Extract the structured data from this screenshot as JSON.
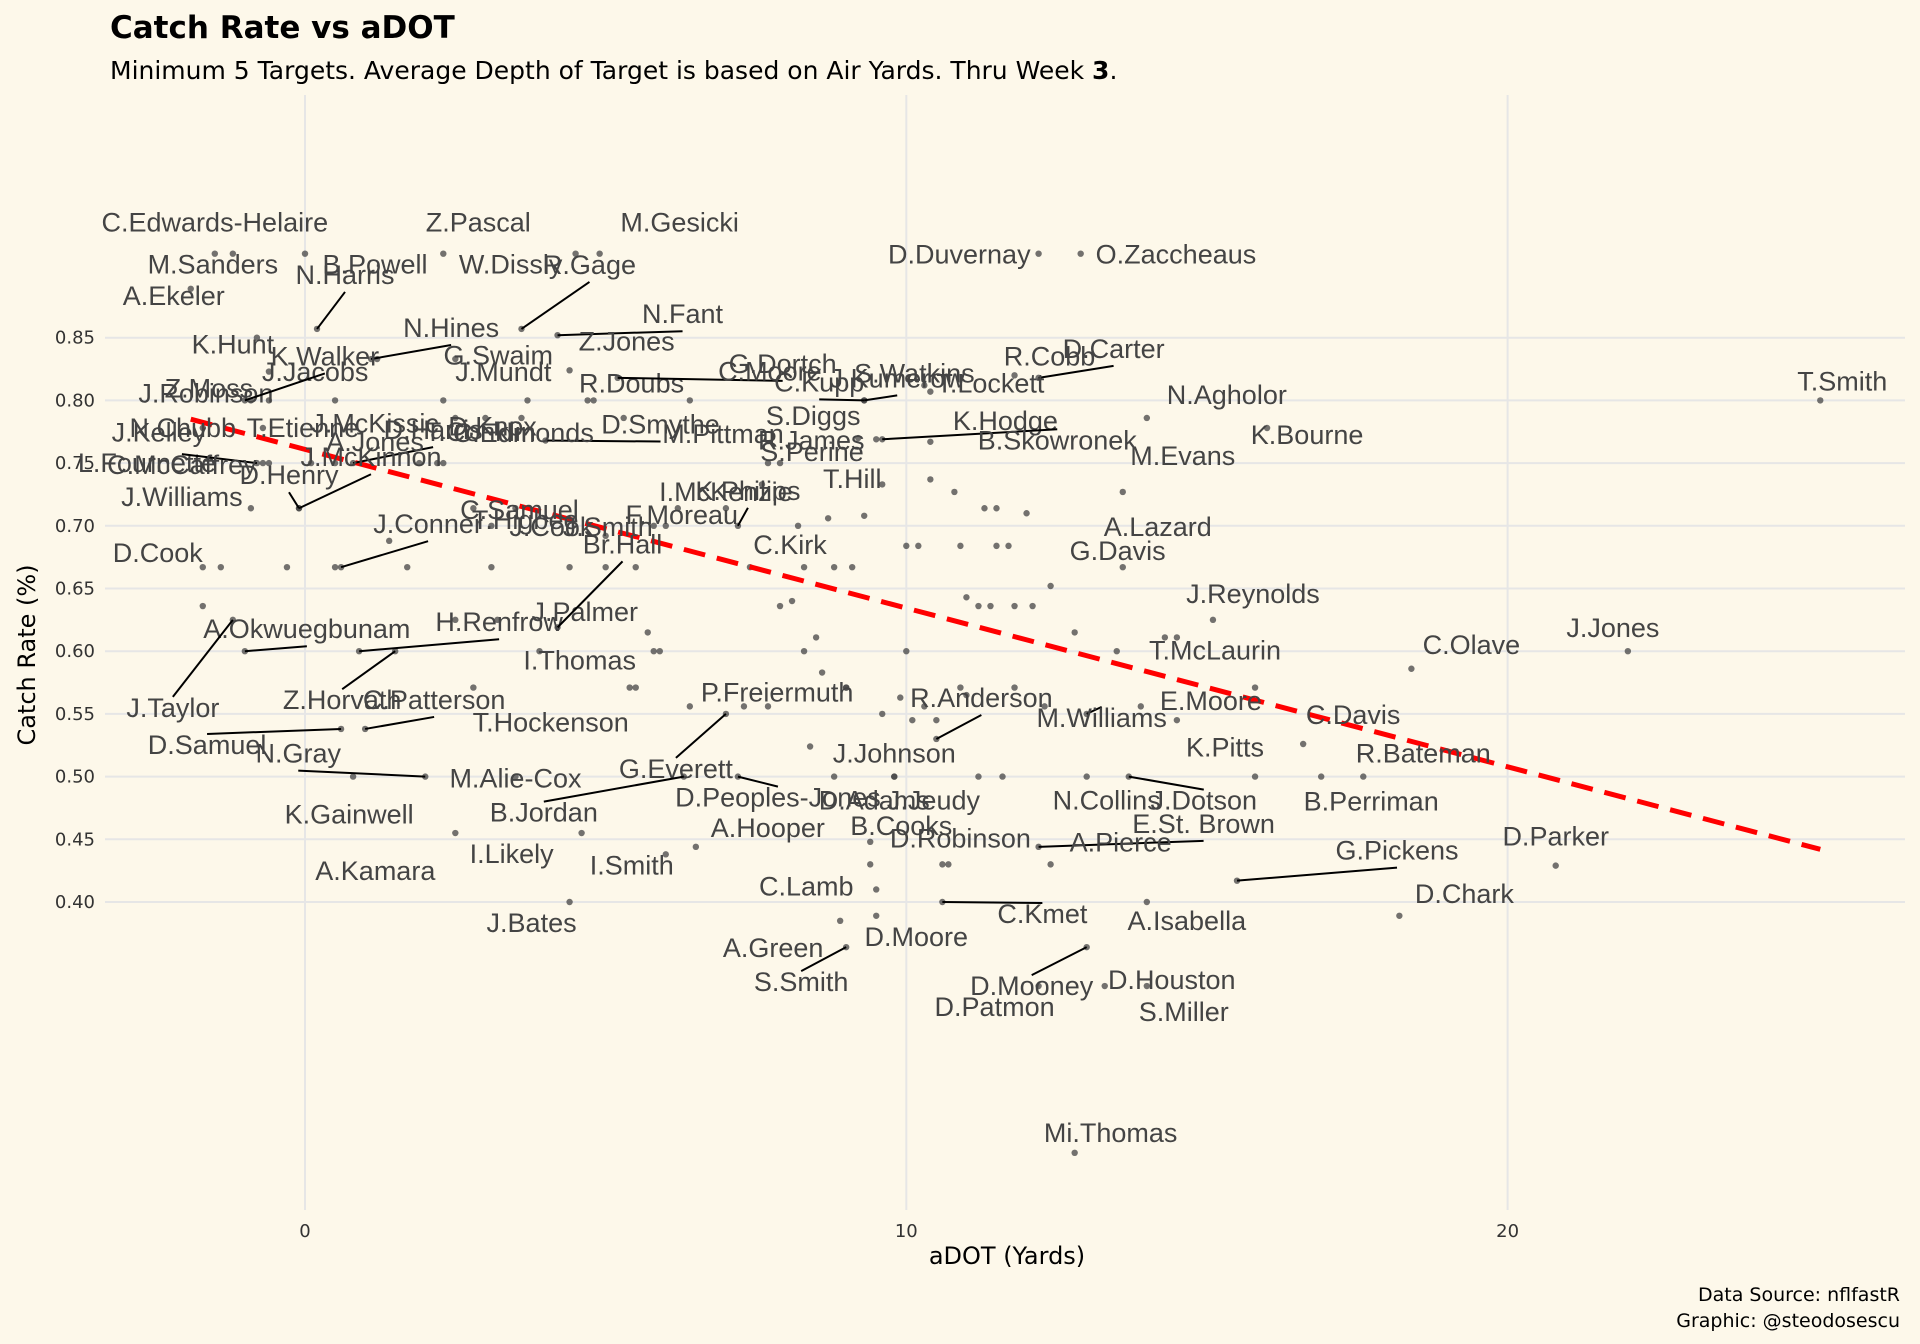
{
  "title": "Catch Rate vs aDOT",
  "subtitle_pre": "Minimum 5 Targets. Average Depth of Target is based on Air Yards. Thru Week ",
  "subtitle_week": "3",
  "subtitle_post": ".",
  "caption_line1": "Data Source: nflfastR",
  "caption_line2": "Graphic: @steodosescu",
  "colors": {
    "background": "#fdf8ea",
    "trend": "#ff0000",
    "points": "#444444",
    "labels": "#444444",
    "grid": "#e6e6e6"
  },
  "chart_data": {
    "type": "scatter",
    "xlabel": "aDOT (Yards)",
    "ylabel": "Catch Rate (%)",
    "xlim": [
      -3.5,
      26.8
    ],
    "ylim": [
      0.2,
      1.0
    ],
    "xticks": [
      0,
      10,
      20
    ],
    "xtick_labels": [
      "0",
      "10",
      "20"
    ],
    "yticks": [
      0.4,
      0.45,
      0.5,
      0.55,
      0.6,
      0.65,
      0.7,
      0.75,
      0.8,
      0.85
    ],
    "ytick_labels": [
      "0.40",
      "0.45",
      "0.50",
      "0.55",
      "0.60",
      "0.65",
      "0.70",
      "0.75",
      "0.80",
      "0.85"
    ],
    "grid": true,
    "trend_line": {
      "style": "dashed",
      "x": [
        -1.9,
        25.2
      ],
      "y": [
        0.785,
        0.442
      ]
    },
    "labeled_points": [
      {
        "name": "C.Edwards-Helaire",
        "x": -1.5,
        "y": 0.917
      },
      {
        "name": "Z.Pascal",
        "x": 2.3,
        "y": 0.917
      },
      {
        "name": "M.Gesicki",
        "x": 4.9,
        "y": 0.917
      },
      {
        "name": "M.Sanders",
        "x": -1.2,
        "y": 0.917
      },
      {
        "name": "B.Powell",
        "x": 0.0,
        "y": 0.917
      },
      {
        "name": "W.Dissly",
        "x": 4.5,
        "y": 0.917
      },
      {
        "name": "D.Duvernay",
        "x": 12.2,
        "y": 0.917
      },
      {
        "name": "O.Zaccheaus",
        "x": 12.9,
        "y": 0.917
      },
      {
        "name": "A.Ekeler",
        "x": -1.9,
        "y": 0.889
      },
      {
        "name": "N.Harris",
        "x": 0.2,
        "y": 0.857
      },
      {
        "name": "R.Gage",
        "x": 3.6,
        "y": 0.857
      },
      {
        "name": "K.Hunt",
        "x": -0.8,
        "y": 0.85
      },
      {
        "name": "N.Fant",
        "x": 4.2,
        "y": 0.852
      },
      {
        "name": "N.Hines",
        "x": 1.1,
        "y": 0.833
      },
      {
        "name": "J.Jacobs",
        "x": 1.2,
        "y": 0.833
      },
      {
        "name": "Z.Moss",
        "x": -0.6,
        "y": 0.823
      },
      {
        "name": "J.Mundt",
        "x": 2.5,
        "y": 0.833
      },
      {
        "name": "R.Doubs",
        "x": 4.4,
        "y": 0.824
      },
      {
        "name": "G.Dortch",
        "x": 5.2,
        "y": 0.818
      },
      {
        "name": "S.Watkins",
        "x": 10.3,
        "y": 0.812
      },
      {
        "name": "R.Cobb",
        "x": 11.8,
        "y": 0.82
      },
      {
        "name": "J.Robinson",
        "x": -0.9,
        "y": 0.8
      },
      {
        "name": "K.Walker",
        "x": -1.0,
        "y": 0.8
      },
      {
        "name": "G.Swaim",
        "x": 2.3,
        "y": 0.8
      },
      {
        "name": "D.Smythe",
        "x": 4.0,
        "y": 0.768
      },
      {
        "name": "R.James",
        "x": 9.5,
        "y": 0.769
      },
      {
        "name": "K.Hodge",
        "x": 10.4,
        "y": 0.767
      },
      {
        "name": "D.Carter",
        "x": 12.2,
        "y": 0.818
      },
      {
        "name": "J.Kelley",
        "x": -0.6,
        "y": 0.8
      },
      {
        "name": "J.McKissic",
        "x": 0.5,
        "y": 0.8
      },
      {
        "name": "D.Knox",
        "x": 3.7,
        "y": 0.8
      },
      {
        "name": "C.Moore",
        "x": 6.4,
        "y": 0.8
      },
      {
        "name": "C.Kupp",
        "x": 9.3,
        "y": 0.8
      },
      {
        "name": "T.Lockett",
        "x": 10.4,
        "y": 0.807
      },
      {
        "name": "N.Agholor",
        "x": 14.0,
        "y": 0.786
      },
      {
        "name": "T.Smith",
        "x": 25.2,
        "y": 0.8
      },
      {
        "name": "N.Chubb",
        "x": -1.7,
        "y": 0.778
      },
      {
        "name": "T.Etienne",
        "x": -0.7,
        "y": 0.778
      },
      {
        "name": "S.Diggs",
        "x": 9.2,
        "y": 0.77
      },
      {
        "name": "K.Bourne",
        "x": 16.0,
        "y": 0.778
      },
      {
        "name": "D.Harris",
        "x": 0.8,
        "y": 0.75
      },
      {
        "name": "C.Edmonds",
        "x": 2.3,
        "y": 0.75
      },
      {
        "name": "Z.Jones",
        "x": 4.8,
        "y": 0.8
      },
      {
        "name": "J.Kumerow",
        "x": 9.3,
        "y": 0.8
      },
      {
        "name": "B.Skowronek",
        "x": 9.6,
        "y": 0.769
      },
      {
        "name": "L.Fournette",
        "x": -0.6,
        "y": 0.75
      },
      {
        "name": "M.Pittman",
        "x": 7.7,
        "y": 0.75
      },
      {
        "name": "S.Perine",
        "x": 7.9,
        "y": 0.75
      },
      {
        "name": "A.Jones",
        "x": 0.5,
        "y": 0.75
      },
      {
        "name": "T.Conklin",
        "x": 2.2,
        "y": 0.75
      },
      {
        "name": "M.Evans",
        "x": 13.6,
        "y": 0.727
      },
      {
        "name": "J.Williams",
        "x": -0.9,
        "y": 0.714
      },
      {
        "name": "C.Samuel",
        "x": 3.5,
        "y": 0.714
      },
      {
        "name": "I.McKenzie",
        "x": 7.0,
        "y": 0.714
      },
      {
        "name": "T.Hill",
        "x": 9.3,
        "y": 0.708
      },
      {
        "name": "J.McKinnon",
        "x": -0.1,
        "y": 0.714
      },
      {
        "name": "C.McCaffrey",
        "x": -0.8,
        "y": 0.75
      },
      {
        "name": "D.Henry",
        "x": -0.1,
        "y": 0.714
      },
      {
        "name": "J.Cook",
        "x": 3.1,
        "y": 0.667
      },
      {
        "name": "F.Moreau",
        "x": 5.8,
        "y": 0.7
      },
      {
        "name": "K.Philips",
        "x": 7.2,
        "y": 0.7
      },
      {
        "name": "A.Lazard",
        "x": 13.6,
        "y": 0.667
      },
      {
        "name": "D.Cook",
        "x": -1.7,
        "y": 0.667
      },
      {
        "name": "J.Conner",
        "x": 0.6,
        "y": 0.667
      },
      {
        "name": "T.Higbee",
        "x": 1.7,
        "y": 0.667
      },
      {
        "name": "J.Smith",
        "x": 5.5,
        "y": 0.667
      },
      {
        "name": "C.Kirk",
        "x": 7.4,
        "y": 0.667
      },
      {
        "name": "G.Davis",
        "x": 12.4,
        "y": 0.652
      },
      {
        "name": "J.Reynolds",
        "x": 15.1,
        "y": 0.625
      },
      {
        "name": "A.Okwuegbunam",
        "x": -1.0,
        "y": 0.6
      },
      {
        "name": "J.Palmer",
        "x": 5.9,
        "y": 0.6
      },
      {
        "name": "J.Jones",
        "x": 22.0,
        "y": 0.6
      },
      {
        "name": "H.Renfrow",
        "x": 0.9,
        "y": 0.6
      },
      {
        "name": "J.Taylor",
        "x": -1.2,
        "y": 0.625
      },
      {
        "name": "Z.Horvath",
        "x": 1.5,
        "y": 0.6
      },
      {
        "name": "Br.Hall",
        "x": 4.2,
        "y": 0.619
      },
      {
        "name": "T.McLaurin",
        "x": 15.8,
        "y": 0.571
      },
      {
        "name": "C.Olave",
        "x": 18.4,
        "y": 0.586
      },
      {
        "name": "I.Thomas",
        "x": 5.4,
        "y": 0.571
      },
      {
        "name": "C.Patterson",
        "x": 1.0,
        "y": 0.538
      },
      {
        "name": "E.Moore",
        "x": 14.5,
        "y": 0.545
      },
      {
        "name": "D.Samuel",
        "x": 0.6,
        "y": 0.538
      },
      {
        "name": "T.Hockenson",
        "x": 5.5,
        "y": 0.571
      },
      {
        "name": "P.Freiermuth",
        "x": 9.0,
        "y": 0.571
      },
      {
        "name": "R.Anderson",
        "x": 10.5,
        "y": 0.53
      },
      {
        "name": "C.Davis",
        "x": 16.6,
        "y": 0.526
      },
      {
        "name": "N.Gray",
        "x": 2.0,
        "y": 0.5
      },
      {
        "name": "J.Johnson",
        "x": 9.8,
        "y": 0.5
      },
      {
        "name": "M.Williams",
        "x": 13.0,
        "y": 0.55
      },
      {
        "name": "K.Pitts",
        "x": 15.8,
        "y": 0.5
      },
      {
        "name": "R.Bateman",
        "x": 17.6,
        "y": 0.5
      },
      {
        "name": "M.Alie-Cox",
        "x": 3.5,
        "y": 0.5
      },
      {
        "name": "G.Everett",
        "x": 7.0,
        "y": 0.55
      },
      {
        "name": "D.Peoples-Jones",
        "x": 7.2,
        "y": 0.5
      },
      {
        "name": "D.Adams",
        "x": 9.8,
        "y": 0.5
      },
      {
        "name": "J.Jeudy",
        "x": 11.2,
        "y": 0.5
      },
      {
        "name": "N.Collins",
        "x": 13.0,
        "y": 0.5
      },
      {
        "name": "J.Dotson",
        "x": 13.7,
        "y": 0.5
      },
      {
        "name": "B.Perriman",
        "x": 16.9,
        "y": 0.5
      },
      {
        "name": "K.Gainwell",
        "x": 0.8,
        "y": 0.5
      },
      {
        "name": "B.Jordan",
        "x": 6.3,
        "y": 0.5
      },
      {
        "name": "A.Hooper",
        "x": 6.5,
        "y": 0.444
      },
      {
        "name": "B.Cooks",
        "x": 9.4,
        "y": 0.448
      },
      {
        "name": "E.St. Brown",
        "x": 12.2,
        "y": 0.444
      },
      {
        "name": "G.Pickens",
        "x": 15.5,
        "y": 0.417
      },
      {
        "name": "D.Parker",
        "x": 20.8,
        "y": 0.429
      },
      {
        "name": "A.Kamara",
        "x": 2.5,
        "y": 0.455
      },
      {
        "name": "I.Likely",
        "x": 4.6,
        "y": 0.455
      },
      {
        "name": "I.Smith",
        "x": 6.0,
        "y": 0.438
      },
      {
        "name": "C.Lamb",
        "x": 9.5,
        "y": 0.41
      },
      {
        "name": "D.Robinson",
        "x": 10.6,
        "y": 0.43
      },
      {
        "name": "A.Pierce",
        "x": 12.4,
        "y": 0.43
      },
      {
        "name": "D.Chark",
        "x": 18.2,
        "y": 0.389
      },
      {
        "name": "J.Bates",
        "x": 4.4,
        "y": 0.4
      },
      {
        "name": "A.Green",
        "x": 8.9,
        "y": 0.385
      },
      {
        "name": "D.Moore",
        "x": 9.5,
        "y": 0.389
      },
      {
        "name": "C.Kmet",
        "x": 10.6,
        "y": 0.4
      },
      {
        "name": "A.Isabella",
        "x": 14.0,
        "y": 0.4
      },
      {
        "name": "S.Smith",
        "x": 9.0,
        "y": 0.364
      },
      {
        "name": "D.Mooney",
        "x": 13.0,
        "y": 0.364
      },
      {
        "name": "D.Houston",
        "x": 13.3,
        "y": 0.333
      },
      {
        "name": "D.Patmon",
        "x": 12.2,
        "y": 0.333
      },
      {
        "name": "S.Miller",
        "x": 14.0,
        "y": 0.333
      },
      {
        "name": "Mi.Thomas",
        "x": 12.8,
        "y": 0.2
      }
    ],
    "unlabeled_points": [
      [
        -1.7,
        0.636
      ],
      [
        -1.4,
        0.667
      ],
      [
        -0.3,
        0.667
      ],
      [
        0.5,
        0.667
      ],
      [
        -0.7,
        0.75
      ],
      [
        0.1,
        0.75
      ],
      [
        1.9,
        0.75
      ],
      [
        1.4,
        0.688
      ],
      [
        2.5,
        0.786
      ],
      [
        3.0,
        0.786
      ],
      [
        3.6,
        0.786
      ],
      [
        4.7,
        0.8
      ],
      [
        5.3,
        0.786
      ],
      [
        6.2,
        0.714
      ],
      [
        5.0,
        0.692
      ],
      [
        6.0,
        0.7
      ],
      [
        7.6,
        0.733
      ],
      [
        8.2,
        0.7
      ],
      [
        8.7,
        0.706
      ],
      [
        9.6,
        0.733
      ],
      [
        10.0,
        0.684
      ],
      [
        10.2,
        0.684
      ],
      [
        10.4,
        0.737
      ],
      [
        10.8,
        0.727
      ],
      [
        11.3,
        0.714
      ],
      [
        11.5,
        0.714
      ],
      [
        12.0,
        0.71
      ],
      [
        10.9,
        0.684
      ],
      [
        11.5,
        0.684
      ],
      [
        11.7,
        0.684
      ],
      [
        11.0,
        0.643
      ],
      [
        11.2,
        0.636
      ],
      [
        11.4,
        0.636
      ],
      [
        11.8,
        0.636
      ],
      [
        12.1,
        0.636
      ],
      [
        8.3,
        0.667
      ],
      [
        8.8,
        0.667
      ],
      [
        9.1,
        0.667
      ],
      [
        8.3,
        0.6
      ],
      [
        8.5,
        0.611
      ],
      [
        7.9,
        0.636
      ],
      [
        8.1,
        0.64
      ],
      [
        8.6,
        0.583
      ],
      [
        9.0,
        0.571
      ],
      [
        9.6,
        0.55
      ],
      [
        10.0,
        0.6
      ],
      [
        10.9,
        0.571
      ],
      [
        11.0,
        0.565
      ],
      [
        11.8,
        0.571
      ],
      [
        12.3,
        0.556
      ],
      [
        13.5,
        0.6
      ],
      [
        13.9,
        0.556
      ],
      [
        14.3,
        0.611
      ],
      [
        14.5,
        0.611
      ],
      [
        12.8,
        0.615
      ],
      [
        3.9,
        0.6
      ],
      [
        3.2,
        0.625
      ],
      [
        2.5,
        0.625
      ],
      [
        2.8,
        0.571
      ],
      [
        5.7,
        0.615
      ],
      [
        6.4,
        0.556
      ],
      [
        7.3,
        0.556
      ],
      [
        5.8,
        0.6
      ],
      [
        5.0,
        0.667
      ],
      [
        4.4,
        0.667
      ],
      [
        3.1,
        0.7
      ],
      [
        2.8,
        0.714
      ],
      [
        7.7,
        0.556
      ],
      [
        8.4,
        0.524
      ],
      [
        10.1,
        0.545
      ],
      [
        10.3,
        0.556
      ],
      [
        10.5,
        0.545
      ],
      [
        9.9,
        0.563
      ],
      [
        10.7,
        0.43
      ],
      [
        9.4,
        0.43
      ],
      [
        8.8,
        0.5
      ],
      [
        11.6,
        0.5
      ]
    ]
  }
}
